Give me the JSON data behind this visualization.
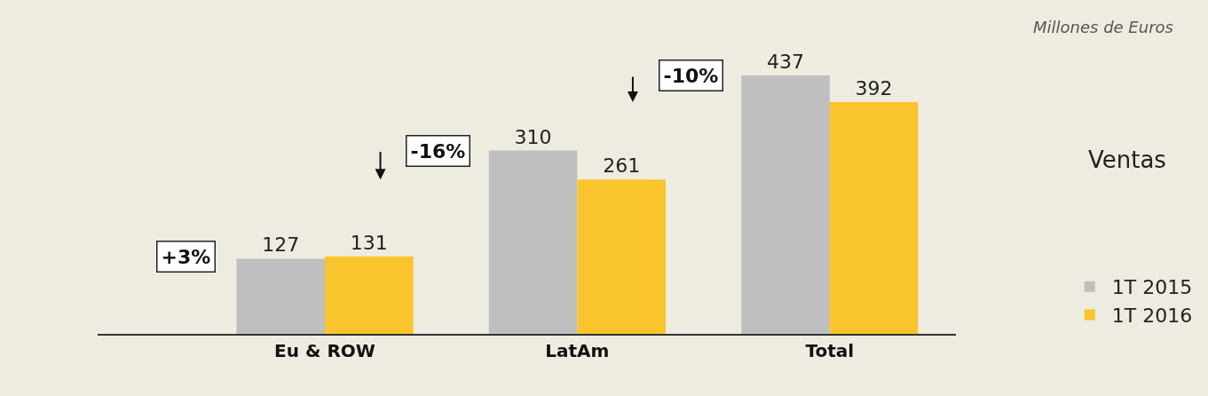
{
  "chart_data": {
    "type": "bar",
    "title": "Ventas",
    "categories": [
      "Eu & ROW",
      "LatAm",
      "Total"
    ],
    "series": [
      {
        "name": "1T 2015",
        "color": "#bfbfbf",
        "values": [
          127,
          310,
          437
        ]
      },
      {
        "name": "1T 2016",
        "color": "#f9c42c",
        "values": [
          131,
          261,
          392
        ]
      }
    ],
    "data_labels": true,
    "legend": "bottom right",
    "grid": false,
    "annotations": [
      "Millones de Euros",
      "+3%",
      "-16%",
      "-10%"
    ]
  }
}
